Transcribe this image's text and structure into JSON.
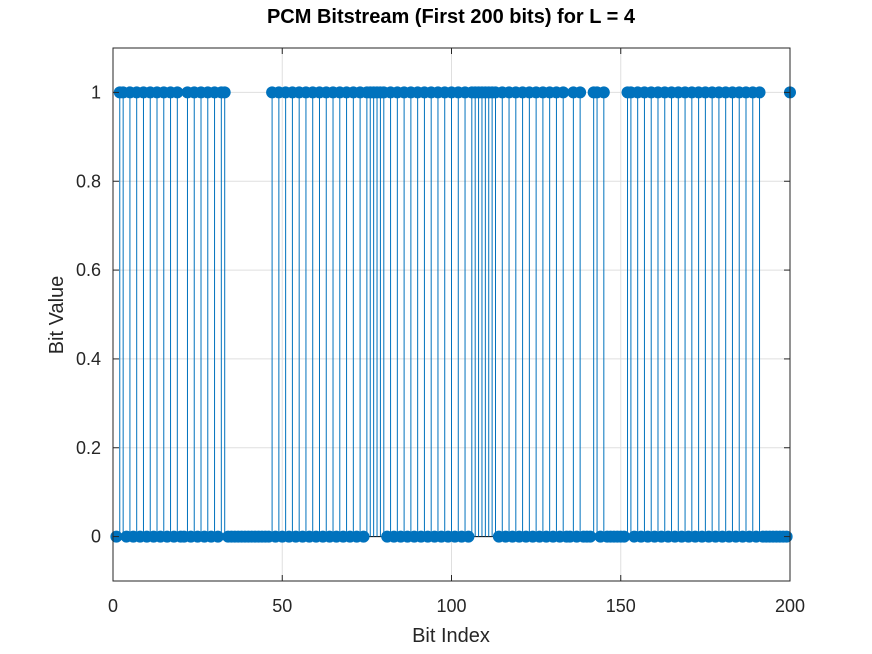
{
  "chart_data": {
    "type": "stem",
    "title": "PCM Bitstream (First 200 bits) for L = 4",
    "xlabel": "Bit Index",
    "ylabel": "Bit Value",
    "xlim": [
      0,
      200
    ],
    "ylim": [
      -0.1,
      1.1
    ],
    "xticks": [
      0,
      50,
      100,
      150,
      200
    ],
    "xtick_labels": [
      "0",
      "50",
      "100",
      "150",
      "200"
    ],
    "yticks": [
      0,
      0.2,
      0.4,
      0.6,
      0.8,
      1
    ],
    "ytick_labels": [
      "0",
      "0.2",
      "0.4",
      "0.6",
      "0.8",
      "1"
    ],
    "grid": true,
    "series_color": "#0072BD",
    "x": [
      1,
      2,
      3,
      4,
      5,
      6,
      7,
      8,
      9,
      10,
      11,
      12,
      13,
      14,
      15,
      16,
      17,
      18,
      19,
      20,
      21,
      22,
      23,
      24,
      25,
      26,
      27,
      28,
      29,
      30,
      31,
      32,
      33,
      34,
      35,
      36,
      37,
      38,
      39,
      40,
      41,
      42,
      43,
      44,
      45,
      46,
      47,
      48,
      49,
      50,
      51,
      52,
      53,
      54,
      55,
      56,
      57,
      58,
      59,
      60,
      61,
      62,
      63,
      64,
      65,
      66,
      67,
      68,
      69,
      70,
      71,
      72,
      73,
      74,
      75,
      76,
      77,
      78,
      79,
      80,
      81,
      82,
      83,
      84,
      85,
      86,
      87,
      88,
      89,
      90,
      91,
      92,
      93,
      94,
      95,
      96,
      97,
      98,
      99,
      100,
      101,
      102,
      103,
      104,
      105,
      106,
      107,
      108,
      109,
      110,
      111,
      112,
      113,
      114,
      115,
      116,
      117,
      118,
      119,
      120,
      121,
      122,
      123,
      124,
      125,
      126,
      127,
      128,
      129,
      130,
      131,
      132,
      133,
      134,
      135,
      136,
      137,
      138,
      139,
      140,
      141,
      142,
      143,
      144,
      145,
      146,
      147,
      148,
      149,
      150,
      151,
      152,
      153,
      154,
      155,
      156,
      157,
      158,
      159,
      160,
      161,
      162,
      163,
      164,
      165,
      166,
      167,
      168,
      169,
      170,
      171,
      172,
      173,
      174,
      175,
      176,
      177,
      178,
      179,
      180,
      181,
      182,
      183,
      184,
      185,
      186,
      187,
      188,
      189,
      190,
      191,
      192,
      193,
      194,
      195,
      196,
      197,
      198,
      199,
      200
    ],
    "values": [
      0,
      1,
      1,
      0,
      1,
      0,
      1,
      0,
      1,
      0,
      1,
      0,
      1,
      0,
      1,
      0,
      1,
      0,
      1,
      0,
      0,
      1,
      0,
      1,
      0,
      1,
      0,
      1,
      0,
      1,
      0,
      1,
      1,
      0,
      0,
      0,
      0,
      0,
      0,
      0,
      0,
      0,
      0,
      0,
      0,
      0,
      1,
      0,
      1,
      0,
      1,
      0,
      1,
      0,
      1,
      0,
      1,
      0,
      1,
      0,
      1,
      0,
      1,
      0,
      1,
      0,
      1,
      0,
      1,
      0,
      1,
      0,
      1,
      0,
      1,
      1,
      1,
      1,
      1,
      1,
      0,
      1,
      0,
      1,
      0,
      1,
      0,
      1,
      0,
      1,
      0,
      1,
      0,
      1,
      0,
      1,
      0,
      1,
      0,
      1,
      0,
      1,
      0,
      1,
      0,
      1,
      1,
      1,
      1,
      1,
      1,
      1,
      1,
      0,
      1,
      0,
      1,
      0,
      1,
      0,
      1,
      0,
      1,
      0,
      1,
      0,
      1,
      0,
      1,
      0,
      1,
      0,
      1,
      0,
      0,
      1,
      0,
      1,
      0,
      0,
      0,
      1,
      1,
      0,
      1,
      0,
      0,
      0,
      0,
      0,
      0,
      1,
      1,
      0,
      1,
      0,
      1,
      0,
      1,
      0,
      1,
      0,
      1,
      0,
      1,
      0,
      1,
      0,
      1,
      0,
      1,
      0,
      1,
      0,
      1,
      0,
      1,
      0,
      1,
      0,
      1,
      0,
      1,
      0,
      1,
      0,
      1,
      0,
      1,
      0,
      1,
      0,
      0,
      0,
      0,
      0,
      0,
      0,
      0,
      1
    ]
  }
}
